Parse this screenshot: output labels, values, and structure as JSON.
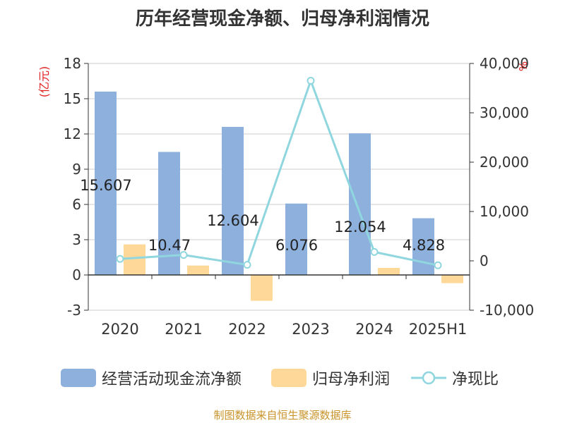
{
  "title": "历年经营现金净额、归母净利润情况",
  "source": "制图数据来自恒生聚源数据库",
  "chart_data": {
    "type": "bar",
    "categories": [
      "2020",
      "2021",
      "2022",
      "2023",
      "2024",
      "2025H1"
    ],
    "y_left": {
      "unit": "(亿元)",
      "ylim": [
        -3,
        18
      ],
      "ticks": [
        "-3",
        "0",
        "3",
        "6",
        "9",
        "12",
        "15",
        "18"
      ]
    },
    "y_right": {
      "unit": "%",
      "ylim": [
        -10000,
        40000
      ],
      "ticks": [
        "-10,000",
        "0",
        "10,000",
        "20,000",
        "30,000",
        "40,000"
      ]
    },
    "series": [
      {
        "name": "经营活动现金流净额",
        "type": "bar",
        "axis": "left",
        "color": "#8eb0dd",
        "values": [
          15.607,
          10.47,
          12.604,
          6.076,
          12.054,
          4.828
        ],
        "labels": [
          "15.607",
          "10.47",
          "12.604",
          "6.076",
          "12.054",
          "4.828"
        ]
      },
      {
        "name": "归母净利润",
        "type": "bar",
        "axis": "left",
        "color": "#fdd898",
        "values": [
          2.6,
          0.8,
          -2.2,
          0,
          0.6,
          -0.7
        ]
      },
      {
        "name": "净现比",
        "type": "line",
        "axis": "right",
        "color": "#8fd6df",
        "values": [
          400,
          1200,
          -800,
          36500,
          1800,
          -900
        ]
      }
    ],
    "grid": true,
    "legend": "bottom"
  }
}
